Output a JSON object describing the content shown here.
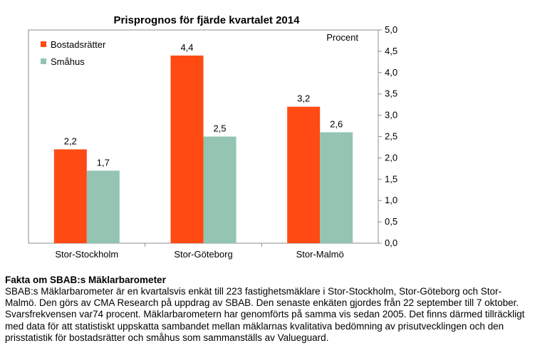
{
  "chart_data": {
    "type": "bar",
    "title": "Prisprognos för fjärde kvartalet 2014",
    "ylabel": "Procent",
    "categories": [
      "Stor-Stockholm",
      "Stor-Göteborg",
      "Stor-Malmö"
    ],
    "series": [
      {
        "name": "Bostadsrätter",
        "values": [
          2.2,
          4.4,
          3.2
        ],
        "labels": [
          "2,2",
          "4,4",
          "3,2"
        ],
        "color": "#ff4a14"
      },
      {
        "name": "Småhus",
        "values": [
          1.7,
          2.5,
          2.6
        ],
        "labels": [
          "1,7",
          "2,5",
          "2,6"
        ],
        "color": "#93c5b2"
      }
    ],
    "ylim": [
      0,
      5
    ],
    "yticks": [
      "0,0",
      "0,5",
      "1,0",
      "1,5",
      "2,0",
      "2,5",
      "3,0",
      "3,5",
      "4,0",
      "4,5",
      "5,0"
    ],
    "grid": false,
    "legend_position": "top-left",
    "y_axis_side": "right"
  },
  "facts": {
    "title": "Fakta om SBAB:s Mäklarbarometer",
    "body": "SBAB:s Mäklarbarometer är en kvartalsvis enkät till 223 fastighetsmäklare i Stor-Stockholm, Stor-Göteborg och Stor-Malmö. Den görs av CMA Research på uppdrag av SBAB. Den senaste enkäten gjordes från 22 september till 7 oktober. Svarsfrekvensen var74 procent. Mäklarbarometern har genomförts på samma vis sedan 2005. Det finns därmed tillräckligt med data för att statistiskt uppskatta sambandet mellan mäklarnas kvalitativa bedömning av prisutvecklingen och den prisstatistik för bostadsrätter och småhus som sammanställs av Valueguard."
  }
}
